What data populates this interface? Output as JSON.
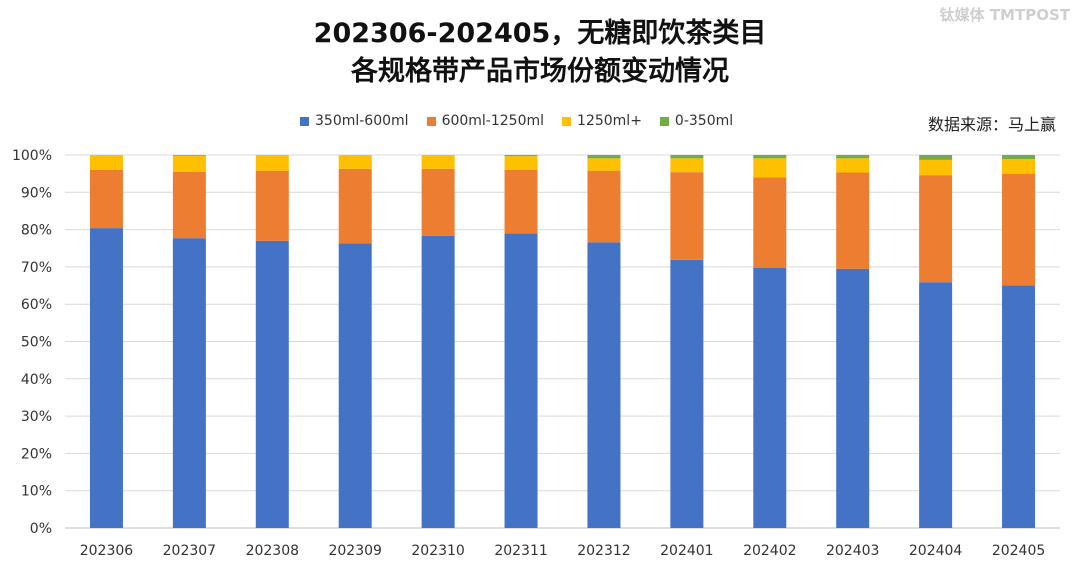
{
  "chart_data": {
    "type": "bar",
    "stacked": true,
    "title_lines": [
      "202306-202405，无糖即饮茶类目",
      "各规格带产品市场份额变动情况"
    ],
    "source": "数据来源：马上赢",
    "categories": [
      "202306",
      "202307",
      "202308",
      "202309",
      "202310",
      "202311",
      "202312",
      "202401",
      "202402",
      "202403",
      "202404",
      "202405"
    ],
    "series": [
      {
        "name": "350ml-600ml",
        "color": "#4472C4",
        "values": [
          80.4,
          77.7,
          77.0,
          76.3,
          78.3,
          79.0,
          76.6,
          71.9,
          69.8,
          69.5,
          65.9,
          65.0
        ]
      },
      {
        "name": "600ml-1250ml",
        "color": "#ED7D31",
        "values": [
          15.6,
          17.8,
          18.8,
          20.0,
          18.0,
          17.0,
          19.2,
          23.5,
          24.2,
          25.8,
          28.7,
          30.0
        ]
      },
      {
        "name": "1250ml+",
        "color": "#FFC000",
        "values": [
          4.0,
          4.3,
          4.2,
          3.7,
          3.7,
          3.7,
          3.3,
          3.7,
          5.1,
          3.8,
          4.1,
          3.9
        ]
      },
      {
        "name": "0-350ml",
        "color": "#70AD47",
        "values": [
          0.0,
          0.2,
          0.0,
          0.0,
          0.0,
          0.3,
          0.9,
          0.9,
          0.9,
          0.9,
          1.3,
          1.1
        ]
      }
    ],
    "ylim": [
      0,
      100
    ],
    "yticks": [
      "0%",
      "10%",
      "20%",
      "30%",
      "40%",
      "50%",
      "60%",
      "70%",
      "80%",
      "90%",
      "100%"
    ],
    "xlabel": "",
    "ylabel": "",
    "grid": true,
    "legend_position": "top"
  },
  "watermark": "钛媒体 TMTPOST"
}
